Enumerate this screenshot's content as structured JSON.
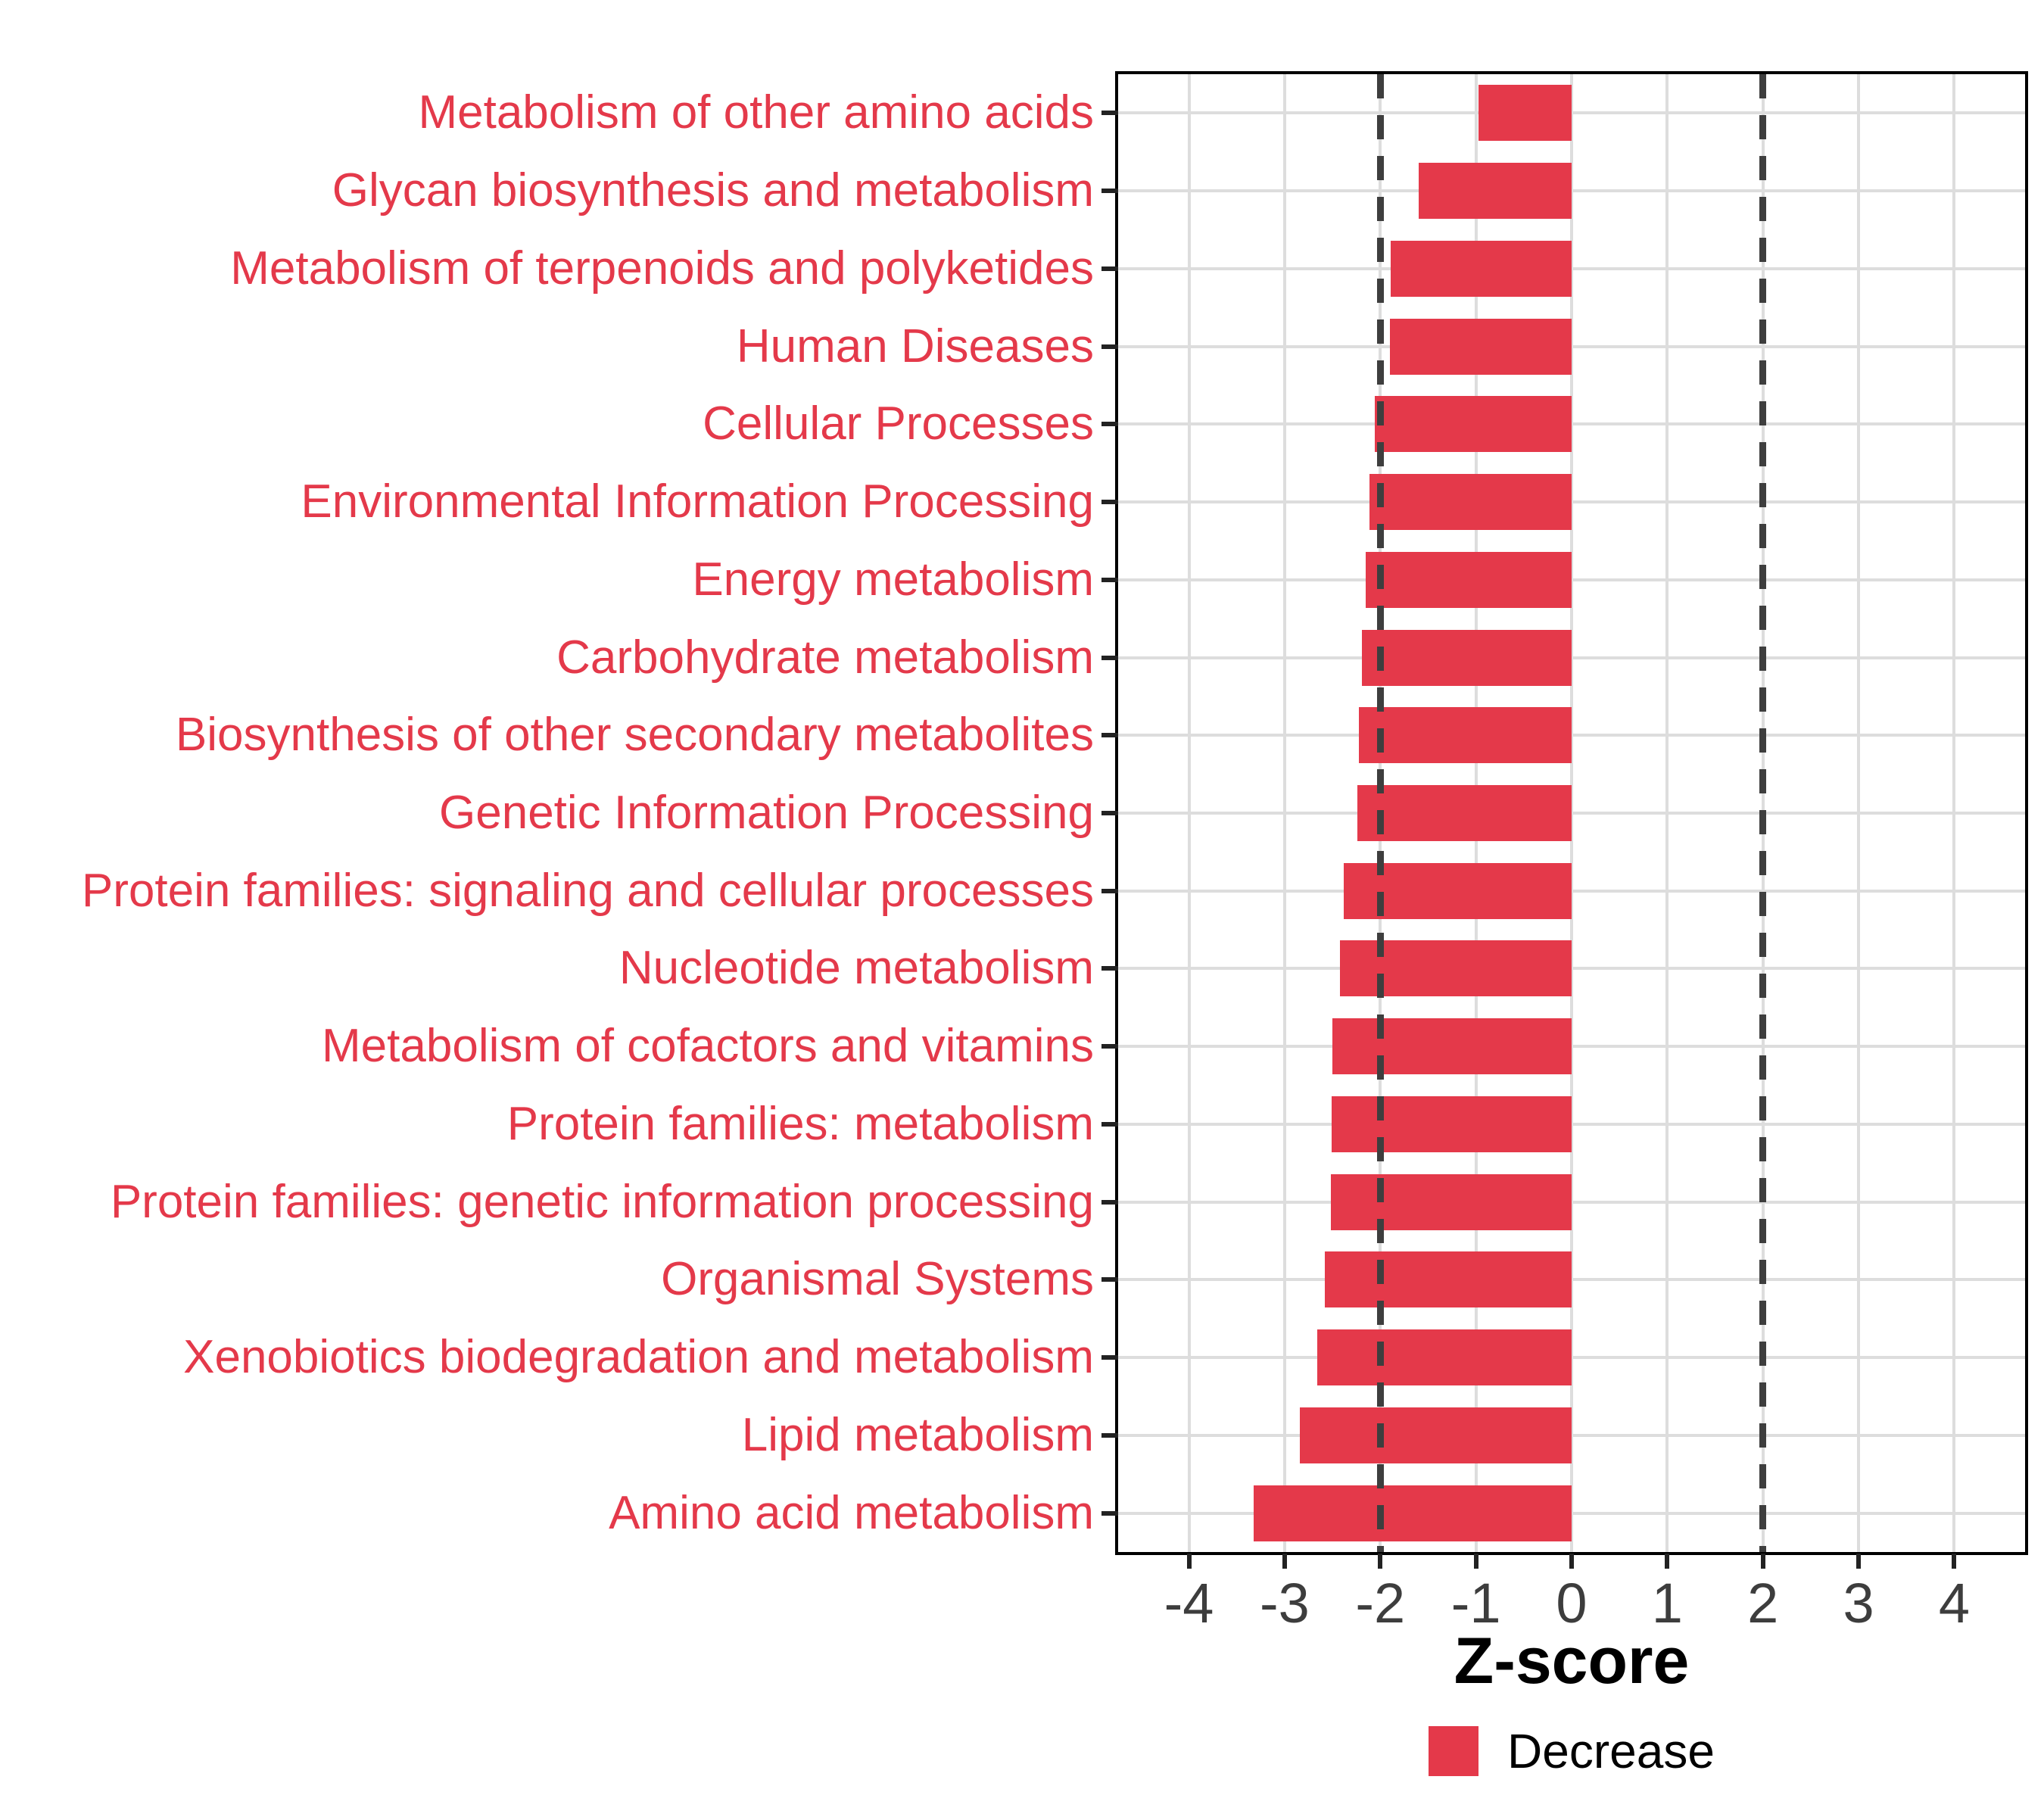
{
  "chart_data": {
    "type": "bar",
    "orientation": "horizontal",
    "title": "",
    "xlabel": "Z-score",
    "ylabel": "",
    "categories": [
      "Metabolism of other amino acids",
      "Glycan biosynthesis and metabolism",
      "Metabolism of terpenoids and polyketides",
      "Human Diseases",
      "Cellular Processes",
      "Environmental Information Processing",
      "Energy metabolism",
      "Carbohydrate metabolism",
      "Biosynthesis of other secondary metabolites",
      "Genetic Information Processing",
      "Protein families: signaling and cellular processes",
      "Nucleotide metabolism",
      "Metabolism of cofactors and vitamins",
      "Protein families: metabolism",
      "Protein families: genetic information processing",
      "Organismal Systems",
      "Xenobiotics biodegradation and metabolism",
      "Lipid metabolism",
      "Amino acid metabolism"
    ],
    "values": [
      -0.97,
      -1.6,
      -1.89,
      -1.9,
      -2.06,
      -2.11,
      -2.15,
      -2.19,
      -2.22,
      -2.24,
      -2.38,
      -2.42,
      -2.5,
      -2.51,
      -2.52,
      -2.58,
      -2.66,
      -2.84,
      -3.32
    ],
    "xlim": [
      -4.74,
      4.74
    ],
    "x_ticks": [
      -4,
      -3,
      -2,
      -1,
      0,
      1,
      2,
      3,
      4
    ],
    "reference_lines": [
      -2,
      2
    ],
    "grid": "major on, light gray, behind bars",
    "legend": {
      "position": "bottom-center",
      "entries": [
        {
          "label": "Decrease",
          "color": "#E4394A"
        }
      ]
    },
    "colors": {
      "bar": "#E4394A",
      "category_label": "#E4394A",
      "axis_tick_label": "#3D3D3D",
      "axis_title": "#000000",
      "gridline": "#DDDDDD",
      "reference_dash": "#3E3E3E",
      "panel_border": "#000000",
      "background": "#FFFFFF"
    }
  }
}
